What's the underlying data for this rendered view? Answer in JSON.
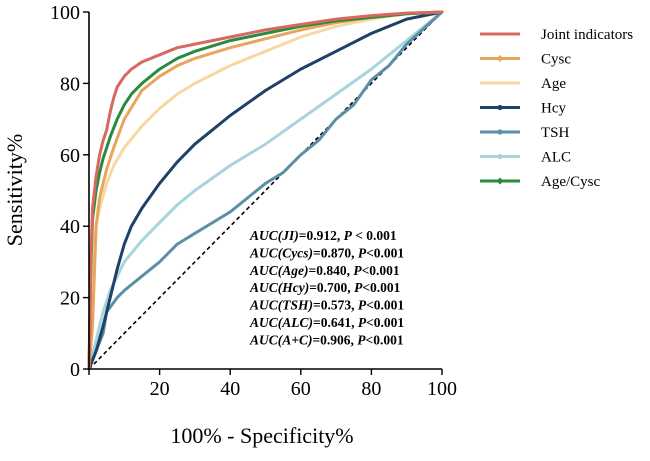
{
  "chart_data": {
    "type": "line",
    "title": "",
    "xlabel": "100% - Specificity%",
    "ylabel": "Sensitivity%",
    "xlim": [
      0,
      100
    ],
    "ylim": [
      0,
      100
    ],
    "xticks": [
      "0",
      "20",
      "40",
      "60",
      "80",
      "100"
    ],
    "yticks": [
      "0",
      "20",
      "40",
      "60",
      "80",
      "100"
    ],
    "x_tick_values": [
      0,
      20,
      40,
      60,
      80,
      100
    ],
    "y_tick_values": [
      0,
      20,
      40,
      60,
      80,
      100
    ],
    "grid": false,
    "legend_position": "right",
    "reference_line": {
      "style": "dashed",
      "from": [
        0,
        0
      ],
      "to": [
        100,
        100
      ]
    },
    "series": [
      {
        "name": "Joint indicators",
        "color": "#d9695f",
        "marker": "none",
        "x": [
          0,
          0.5,
          1,
          2,
          3,
          4,
          5,
          6,
          7,
          8,
          10,
          12,
          15,
          20,
          25,
          30,
          40,
          50,
          60,
          70,
          80,
          90,
          100
        ],
        "y": [
          0,
          30,
          45,
          54,
          60,
          64,
          67,
          72,
          76,
          79,
          82,
          84,
          86,
          88,
          90,
          91,
          93,
          95,
          96.5,
          98,
          99,
          99.7,
          100
        ]
      },
      {
        "name": "Cysc",
        "color": "#e8a55c",
        "marker": "diamond",
        "x": [
          0,
          1,
          2,
          3,
          5,
          7,
          10,
          15,
          20,
          25,
          30,
          40,
          50,
          60,
          70,
          80,
          90,
          100
        ],
        "y": [
          0,
          12,
          40,
          48,
          56,
          62,
          70,
          78,
          82,
          85,
          87,
          90,
          92.5,
          95,
          97,
          98.5,
          99.5,
          100
        ]
      },
      {
        "name": "Age",
        "color": "#f5d9a0",
        "marker": "none",
        "x": [
          0,
          1,
          2,
          3,
          5,
          7,
          10,
          15,
          20,
          25,
          30,
          40,
          50,
          60,
          70,
          80,
          90,
          100
        ],
        "y": [
          0,
          30,
          40,
          45,
          52,
          57,
          62,
          68,
          73,
          77,
          80,
          85,
          89,
          93,
          96,
          98,
          99.5,
          100
        ]
      },
      {
        "name": "Hcy",
        "color": "#1f4068",
        "marker": "dot",
        "x": [
          0,
          2,
          4,
          6,
          8,
          10,
          12,
          15,
          20,
          25,
          30,
          35,
          40,
          50,
          60,
          70,
          80,
          90,
          100
        ],
        "y": [
          0,
          5,
          12,
          20,
          28,
          35,
          40,
          45,
          52,
          58,
          63,
          67,
          71,
          78,
          84,
          89,
          94,
          98,
          100
        ]
      },
      {
        "name": "TSH",
        "color": "#5a8fa6",
        "marker": "dot",
        "x": [
          0,
          2,
          4,
          5,
          8,
          10,
          15,
          20,
          25,
          30,
          35,
          40,
          50,
          55,
          60,
          65,
          70,
          75,
          80,
          85,
          90,
          100
        ],
        "y": [
          0,
          5,
          10,
          16,
          20,
          22,
          26,
          30,
          35,
          38,
          41,
          44,
          52,
          55,
          60,
          64,
          70,
          74,
          81,
          85,
          91,
          100
        ]
      },
      {
        "name": "ALC",
        "color": "#a8d5dc",
        "marker": "dot",
        "x": [
          0,
          2,
          4,
          6,
          8,
          10,
          15,
          20,
          25,
          30,
          40,
          50,
          60,
          70,
          80,
          90,
          100
        ],
        "y": [
          0,
          8,
          16,
          22,
          26,
          30,
          36,
          41,
          46,
          50,
          57,
          63,
          70,
          77,
          84,
          92,
          100
        ]
      },
      {
        "name": "Age/Cysc",
        "color": "#2b8a3e",
        "marker": "diamond",
        "x": [
          0,
          0.5,
          1,
          2,
          3,
          4,
          5,
          6,
          8,
          10,
          12,
          15,
          20,
          25,
          30,
          40,
          50,
          60,
          70,
          80,
          90,
          100
        ],
        "y": [
          0,
          28,
          42,
          50,
          55,
          59,
          62,
          65,
          70,
          74,
          77,
          80,
          84,
          87,
          89,
          92,
          94,
          96,
          97.5,
          98.5,
          99.5,
          100
        ]
      }
    ],
    "annotations": [
      {
        "label": "AUC(JI)",
        "value": "=0.912, ",
        "p_label": "P",
        "p_value": " < 0.001"
      },
      {
        "label": "AUC(Cycs)",
        "value": "=0.870, ",
        "p_label": "P",
        "p_value": "<0.001"
      },
      {
        "label": "AUC(Age)",
        "value": "=0.840, ",
        "p_label": "P",
        "p_value": "<0.001"
      },
      {
        "label": "AUC(Hcy)",
        "value": "=0.700, ",
        "p_label": "P",
        "p_value": "<0.001"
      },
      {
        "label": "AUC(TSH)",
        "value": "=0.573, ",
        "p_label": "P",
        "p_value": "<0.001"
      },
      {
        "label": "AUC(ALC)",
        "value": "=0.641, ",
        "p_label": "P",
        "p_value": "<0.001"
      },
      {
        "label": "AUC(A+C)",
        "value": "=0.906, ",
        "p_label": "P",
        "p_value": "<0.001"
      }
    ]
  }
}
